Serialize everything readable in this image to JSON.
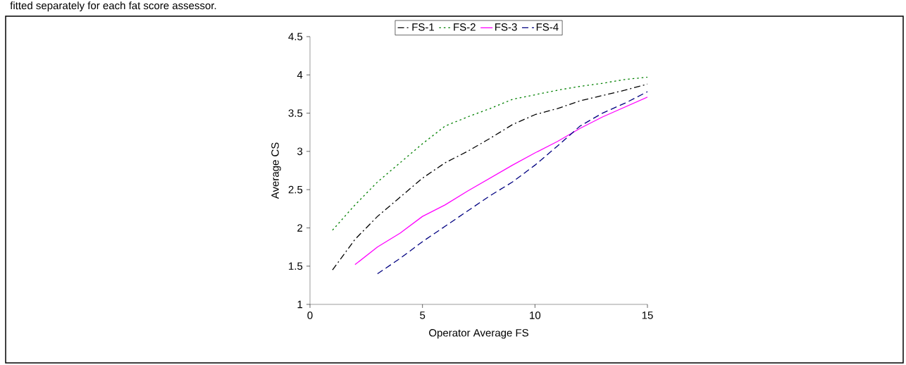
{
  "chart_data": {
    "type": "line",
    "xlabel": "Operator Average FS",
    "ylabel": "Average CS",
    "annotations": [
      "fitted separately for each fat score assessor."
    ],
    "xlim": [
      0,
      15
    ],
    "xticks": [
      0,
      5,
      10,
      15
    ],
    "ylim": [
      1,
      4.5
    ],
    "yticks": [
      1,
      1.5,
      2,
      2.5,
      3,
      3.5,
      4,
      4.5
    ],
    "grid": false,
    "legend": "top",
    "marker": "none",
    "series": [
      {
        "name": "FS-1",
        "color": "#000000",
        "line_style": "dashdot",
        "x": [
          1,
          2,
          3,
          4,
          5,
          6,
          7,
          8,
          9,
          10,
          11,
          12,
          13,
          14,
          15
        ],
        "values": [
          1.45,
          1.85,
          2.15,
          2.4,
          2.65,
          2.85,
          3.0,
          3.17,
          3.35,
          3.48,
          3.56,
          3.66,
          3.73,
          3.8,
          3.88
        ]
      },
      {
        "name": "FS-2",
        "color": "#008000",
        "line_style": "dotted",
        "x": [
          1,
          2,
          3,
          4,
          5,
          6,
          7,
          8,
          9,
          10,
          11,
          12,
          13,
          14,
          15
        ],
        "values": [
          1.97,
          2.3,
          2.6,
          2.85,
          3.1,
          3.33,
          3.45,
          3.56,
          3.68,
          3.74,
          3.8,
          3.85,
          3.89,
          3.94,
          3.97
        ]
      },
      {
        "name": "FS-3",
        "color": "#ff00ff",
        "line_style": "solid",
        "x": [
          2,
          3,
          4,
          5,
          6,
          7,
          8,
          9,
          10,
          11,
          12,
          13,
          14,
          15
        ],
        "values": [
          1.52,
          1.75,
          1.93,
          2.15,
          2.3,
          2.48,
          2.65,
          2.82,
          2.98,
          3.13,
          3.3,
          3.45,
          3.58,
          3.71
        ]
      },
      {
        "name": "FS-4",
        "color": "#000080",
        "line_style": "dashed",
        "x": [
          3,
          4,
          5,
          6,
          7,
          8,
          9,
          10,
          11,
          12,
          13,
          14,
          15
        ],
        "values": [
          1.4,
          1.6,
          1.82,
          2.02,
          2.22,
          2.42,
          2.6,
          2.82,
          3.07,
          3.33,
          3.5,
          3.63,
          3.78
        ]
      }
    ]
  }
}
